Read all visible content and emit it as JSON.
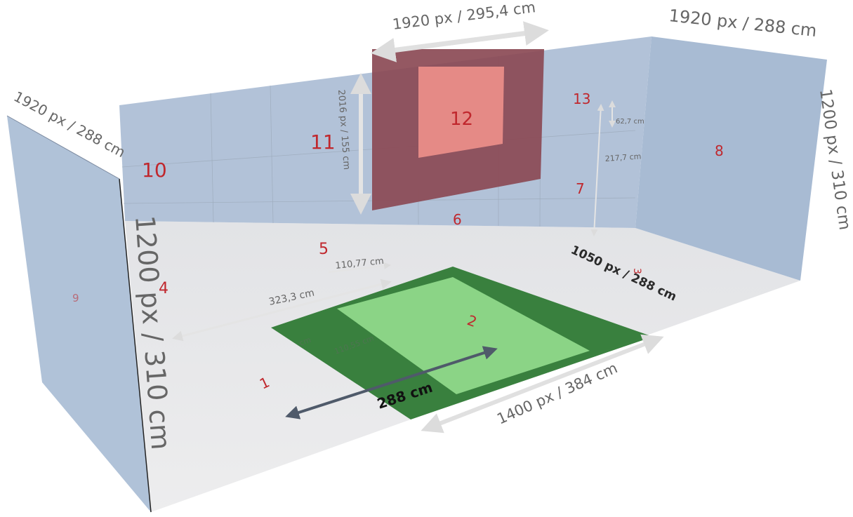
{
  "colors": {
    "wall": "#a9bcd4",
    "floor": "#e6e7ea",
    "zone_number": "#c0272d",
    "green_dark": "#2f7a35",
    "green_light": "#8fd88a",
    "red_dark": "#8b4a55",
    "red_light": "#e58a86",
    "arrow": "#e0e0e0",
    "arrow_dark": "#4f5a6a"
  },
  "zones": {
    "z1": "1",
    "z2": "2",
    "z3": "3",
    "z4": "4",
    "z5": "5",
    "z6": "6",
    "z7": "7",
    "z8": "8",
    "z9": "9",
    "z10": "10",
    "z11": "11",
    "z12": "12",
    "z13": "13"
  },
  "dimensions": {
    "back_wall_top": "1920 px / 295,4 cm",
    "right_wall_top": "1920 px / 288 cm",
    "left_wall_top": "1920 px / 288 cm",
    "right_wall_height": "1200 px / 310 cm",
    "left_wall_height": "1200 px / 310 cm",
    "red_projection_height": "2016 px / 155 cm",
    "floor_right_depth": "1050 px / 288 cm",
    "floor_front_width": "1400 px / 384 cm",
    "floor_green_depth": "288 cm",
    "back_offset_1": "110,77 cm",
    "back_offset_2": "323,3 cm",
    "wall_small_1": "62,7 cm",
    "wall_small_2": "217,7 cm",
    "floor_faint_1": "110,55 cm",
    "floor_faint_2": "cm"
  }
}
